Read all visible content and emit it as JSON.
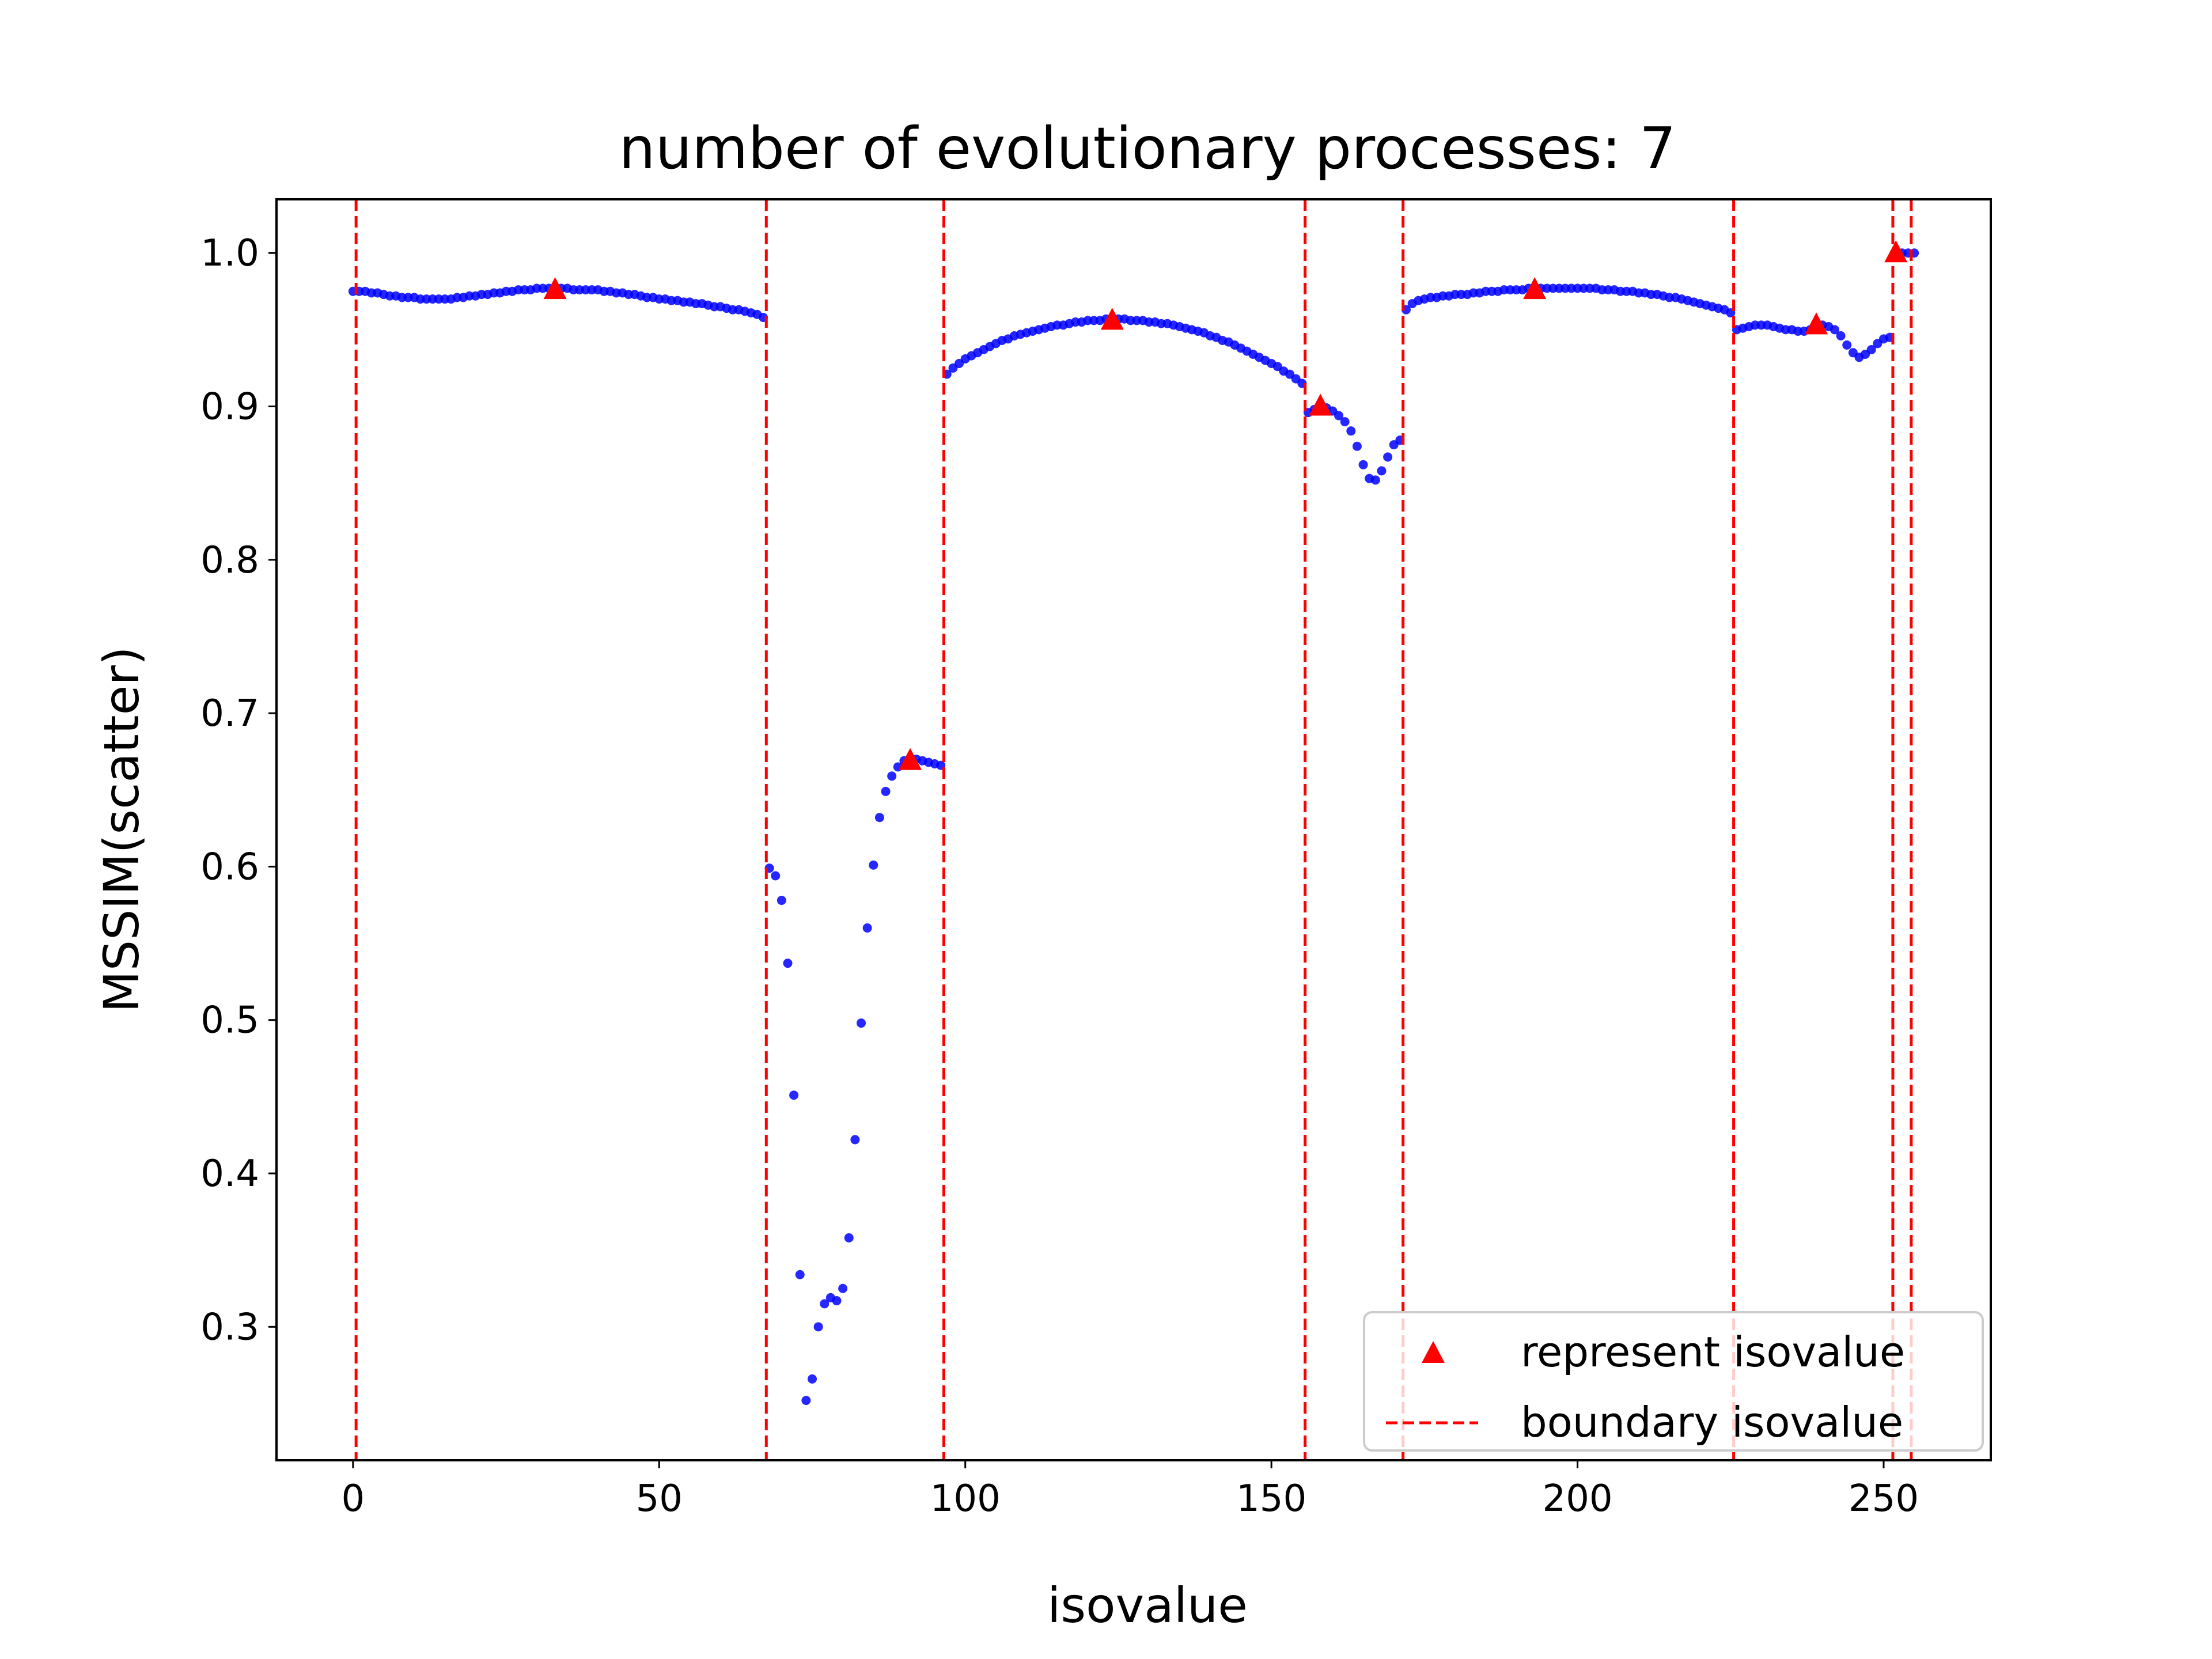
{
  "chart_data": {
    "type": "scatter",
    "title": "number of evolutionary processes: 7",
    "xlabel": "isovalue",
    "ylabel": "MSSIM(scatter)",
    "xlim": [
      -12.5,
      267.5
    ],
    "ylim": [
      0.213,
      1.035
    ],
    "xticks": [
      0,
      50,
      100,
      150,
      200,
      250
    ],
    "xtick_labels": [
      "0",
      "50",
      "100",
      "150",
      "200",
      "250"
    ],
    "yticks": [
      0.3,
      0.4,
      0.5,
      0.6,
      0.7,
      0.8,
      0.9,
      1.0
    ],
    "ytick_labels": [
      "0.3",
      "0.4",
      "0.5",
      "0.6",
      "0.7",
      "0.8",
      "0.9",
      "1.0"
    ],
    "grid": false,
    "legend_position": "lower-right",
    "colors": {
      "scatter": "#0000ff",
      "represent": "#ff0000",
      "boundary": "#ff0000"
    },
    "series": [
      {
        "kind": "scatter",
        "points": [
          [
            0,
            0.975
          ],
          [
            1,
            0.975
          ],
          [
            2,
            0.975
          ],
          [
            3,
            0.974
          ],
          [
            4,
            0.974
          ],
          [
            5,
            0.973
          ],
          [
            6,
            0.972
          ],
          [
            7,
            0.972
          ],
          [
            8,
            0.971
          ],
          [
            9,
            0.971
          ],
          [
            10,
            0.971
          ],
          [
            11,
            0.97
          ],
          [
            12,
            0.97
          ],
          [
            13,
            0.97
          ],
          [
            14,
            0.97
          ],
          [
            15,
            0.97
          ],
          [
            16,
            0.97
          ],
          [
            17,
            0.971
          ],
          [
            18,
            0.971
          ],
          [
            19,
            0.972
          ],
          [
            20,
            0.972
          ],
          [
            21,
            0.973
          ],
          [
            22,
            0.973
          ],
          [
            23,
            0.974
          ],
          [
            24,
            0.974
          ],
          [
            25,
            0.975
          ],
          [
            26,
            0.975
          ],
          [
            27,
            0.976
          ],
          [
            28,
            0.976
          ],
          [
            29,
            0.976
          ],
          [
            30,
            0.977
          ],
          [
            31,
            0.977
          ],
          [
            32,
            0.977
          ],
          [
            33,
            0.977
          ],
          [
            34,
            0.977
          ],
          [
            35,
            0.977
          ],
          [
            36,
            0.976
          ],
          [
            37,
            0.976
          ],
          [
            38,
            0.976
          ],
          [
            39,
            0.976
          ],
          [
            40,
            0.976
          ],
          [
            41,
            0.975
          ],
          [
            42,
            0.975
          ],
          [
            43,
            0.974
          ],
          [
            44,
            0.974
          ],
          [
            45,
            0.973
          ],
          [
            46,
            0.973
          ],
          [
            47,
            0.972
          ],
          [
            48,
            0.971
          ],
          [
            49,
            0.971
          ],
          [
            50,
            0.97
          ],
          [
            51,
            0.97
          ],
          [
            52,
            0.969
          ],
          [
            53,
            0.969
          ],
          [
            54,
            0.968
          ],
          [
            55,
            0.968
          ],
          [
            56,
            0.967
          ],
          [
            57,
            0.967
          ],
          [
            58,
            0.966
          ],
          [
            59,
            0.965
          ],
          [
            60,
            0.965
          ],
          [
            61,
            0.964
          ],
          [
            62,
            0.963
          ],
          [
            63,
            0.963
          ],
          [
            64,
            0.962
          ],
          [
            65,
            0.961
          ],
          [
            66,
            0.96
          ],
          [
            67,
            0.958
          ],
          [
            68,
            0.599
          ],
          [
            69,
            0.594
          ],
          [
            70,
            0.578
          ],
          [
            71,
            0.537
          ],
          [
            72,
            0.451
          ],
          [
            73,
            0.334
          ],
          [
            74,
            0.252
          ],
          [
            75,
            0.266
          ],
          [
            76,
            0.3
          ],
          [
            77,
            0.315
          ],
          [
            78,
            0.319
          ],
          [
            79,
            0.317
          ],
          [
            80,
            0.325
          ],
          [
            81,
            0.358
          ],
          [
            82,
            0.422
          ],
          [
            83,
            0.498
          ],
          [
            84,
            0.56
          ],
          [
            85,
            0.601
          ],
          [
            86,
            0.632
          ],
          [
            87,
            0.649
          ],
          [
            88,
            0.659
          ],
          [
            89,
            0.665
          ],
          [
            90,
            0.669
          ],
          [
            91,
            0.67
          ],
          [
            92,
            0.67
          ],
          [
            93,
            0.669
          ],
          [
            94,
            0.668
          ],
          [
            95,
            0.667
          ],
          [
            96,
            0.666
          ],
          [
            97,
            0.921
          ],
          [
            98,
            0.925
          ],
          [
            99,
            0.928
          ],
          [
            100,
            0.931
          ],
          [
            101,
            0.933
          ],
          [
            102,
            0.935
          ],
          [
            103,
            0.937
          ],
          [
            104,
            0.939
          ],
          [
            105,
            0.941
          ],
          [
            106,
            0.943
          ],
          [
            107,
            0.944
          ],
          [
            108,
            0.946
          ],
          [
            109,
            0.947
          ],
          [
            110,
            0.948
          ],
          [
            111,
            0.949
          ],
          [
            112,
            0.95
          ],
          [
            113,
            0.951
          ],
          [
            114,
            0.952
          ],
          [
            115,
            0.953
          ],
          [
            116,
            0.953
          ],
          [
            117,
            0.954
          ],
          [
            118,
            0.955
          ],
          [
            119,
            0.955
          ],
          [
            120,
            0.956
          ],
          [
            121,
            0.956
          ],
          [
            122,
            0.956
          ],
          [
            123,
            0.957
          ],
          [
            124,
            0.957
          ],
          [
            125,
            0.957
          ],
          [
            126,
            0.957
          ],
          [
            127,
            0.956
          ],
          [
            128,
            0.956
          ],
          [
            129,
            0.956
          ],
          [
            130,
            0.955
          ],
          [
            131,
            0.955
          ],
          [
            132,
            0.954
          ],
          [
            133,
            0.954
          ],
          [
            134,
            0.953
          ],
          [
            135,
            0.952
          ],
          [
            136,
            0.951
          ],
          [
            137,
            0.95
          ],
          [
            138,
            0.949
          ],
          [
            139,
            0.948
          ],
          [
            140,
            0.946
          ],
          [
            141,
            0.945
          ],
          [
            142,
            0.943
          ],
          [
            143,
            0.942
          ],
          [
            144,
            0.94
          ],
          [
            145,
            0.938
          ],
          [
            146,
            0.936
          ],
          [
            147,
            0.934
          ],
          [
            148,
            0.932
          ],
          [
            149,
            0.93
          ],
          [
            150,
            0.928
          ],
          [
            151,
            0.926
          ],
          [
            152,
            0.923
          ],
          [
            153,
            0.921
          ],
          [
            154,
            0.918
          ],
          [
            155,
            0.915
          ],
          [
            156,
            0.896
          ],
          [
            157,
            0.898
          ],
          [
            158,
            0.9
          ],
          [
            159,
            0.899
          ],
          [
            160,
            0.897
          ],
          [
            161,
            0.894
          ],
          [
            162,
            0.89
          ],
          [
            163,
            0.884
          ],
          [
            164,
            0.874
          ],
          [
            165,
            0.862
          ],
          [
            166,
            0.853
          ],
          [
            167,
            0.852
          ],
          [
            168,
            0.858
          ],
          [
            169,
            0.867
          ],
          [
            170,
            0.875
          ],
          [
            171,
            0.878
          ],
          [
            172,
            0.963
          ],
          [
            173,
            0.967
          ],
          [
            174,
            0.969
          ],
          [
            175,
            0.97
          ],
          [
            176,
            0.971
          ],
          [
            177,
            0.971
          ],
          [
            178,
            0.972
          ],
          [
            179,
            0.972
          ],
          [
            180,
            0.973
          ],
          [
            181,
            0.973
          ],
          [
            182,
            0.973
          ],
          [
            183,
            0.974
          ],
          [
            184,
            0.974
          ],
          [
            185,
            0.975
          ],
          [
            186,
            0.975
          ],
          [
            187,
            0.975
          ],
          [
            188,
            0.976
          ],
          [
            189,
            0.976
          ],
          [
            190,
            0.976
          ],
          [
            191,
            0.976
          ],
          [
            192,
            0.977
          ],
          [
            193,
            0.977
          ],
          [
            194,
            0.977
          ],
          [
            195,
            0.977
          ],
          [
            196,
            0.977
          ],
          [
            197,
            0.977
          ],
          [
            198,
            0.977
          ],
          [
            199,
            0.977
          ],
          [
            200,
            0.977
          ],
          [
            201,
            0.977
          ],
          [
            202,
            0.977
          ],
          [
            203,
            0.977
          ],
          [
            204,
            0.976
          ],
          [
            205,
            0.976
          ],
          [
            206,
            0.976
          ],
          [
            207,
            0.975
          ],
          [
            208,
            0.975
          ],
          [
            209,
            0.975
          ],
          [
            210,
            0.974
          ],
          [
            211,
            0.974
          ],
          [
            212,
            0.973
          ],
          [
            213,
            0.973
          ],
          [
            214,
            0.972
          ],
          [
            215,
            0.971
          ],
          [
            216,
            0.971
          ],
          [
            217,
            0.97
          ],
          [
            218,
            0.969
          ],
          [
            219,
            0.968
          ],
          [
            220,
            0.967
          ],
          [
            221,
            0.966
          ],
          [
            222,
            0.965
          ],
          [
            223,
            0.964
          ],
          [
            224,
            0.963
          ],
          [
            225,
            0.961
          ],
          [
            226,
            0.95
          ],
          [
            227,
            0.951
          ],
          [
            228,
            0.952
          ],
          [
            229,
            0.953
          ],
          [
            230,
            0.953
          ],
          [
            231,
            0.953
          ],
          [
            232,
            0.952
          ],
          [
            233,
            0.951
          ],
          [
            234,
            0.95
          ],
          [
            235,
            0.95
          ],
          [
            236,
            0.949
          ],
          [
            237,
            0.949
          ],
          [
            238,
            0.95
          ],
          [
            239,
            0.951
          ],
          [
            240,
            0.953
          ],
          [
            241,
            0.952
          ],
          [
            242,
            0.95
          ],
          [
            243,
            0.946
          ],
          [
            244,
            0.94
          ],
          [
            245,
            0.935
          ],
          [
            246,
            0.932
          ],
          [
            247,
            0.934
          ],
          [
            248,
            0.937
          ],
          [
            249,
            0.941
          ],
          [
            250,
            0.944
          ],
          [
            251,
            0.945
          ],
          [
            252,
            1.0
          ],
          [
            253,
            1.0
          ],
          [
            254,
            1.0
          ],
          [
            255,
            1.0
          ]
        ]
      },
      {
        "kind": "marker",
        "name": "represent isovalue",
        "points": [
          [
            33,
            0.976
          ],
          [
            91,
            0.669
          ],
          [
            124,
            0.956
          ],
          [
            158,
            0.9
          ],
          [
            193,
            0.976
          ],
          [
            239,
            0.953
          ],
          [
            252,
            1.0
          ]
        ]
      },
      {
        "kind": "vline",
        "name": "boundary isovalue",
        "x": [
          0.5,
          67.5,
          96.5,
          155.5,
          171.5,
          225.5,
          251.5,
          254.5
        ]
      }
    ]
  }
}
